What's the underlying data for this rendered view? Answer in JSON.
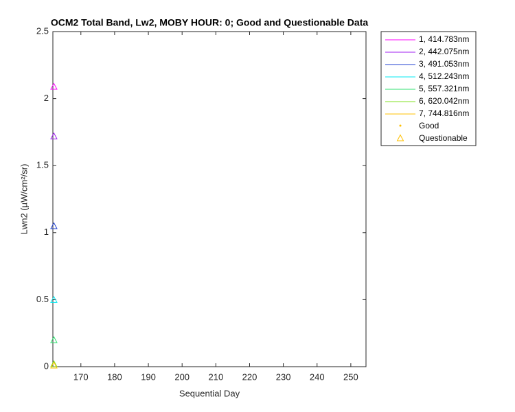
{
  "chart_data": {
    "type": "scatter",
    "title": "OCM2 Total Band, Lw2, MOBY HOUR: 0;  Good and Questionable Data",
    "x_label": "Sequential Day",
    "y_label": "Lwn2 (µW/cm²/sr)",
    "xlim": [
      161.7,
      254.5
    ],
    "xticks": [
      170,
      180,
      190,
      200,
      210,
      220,
      230,
      240,
      250
    ],
    "ylim": [
      0,
      2.5
    ],
    "yticks": [
      0,
      0.5,
      1,
      1.5,
      2,
      2.5
    ],
    "grid": false,
    "legend": "outside-right",
    "series": [
      {
        "name": "1, 414.783nm",
        "color": "#ff00ff",
        "x": [
          162
        ],
        "values": [
          2.09
        ]
      },
      {
        "name": "2, 442.075nm",
        "color": "#a020f0",
        "x": [
          162
        ],
        "values": [
          1.72
        ]
      },
      {
        "name": "3, 491.053nm",
        "color": "#2040d0",
        "x": [
          162
        ],
        "values": [
          1.05
        ]
      },
      {
        "name": "4, 512.243nm",
        "color": "#00e8f0",
        "x": [
          162
        ],
        "values": [
          0.5
        ]
      },
      {
        "name": "5, 557.321nm",
        "color": "#30e070",
        "x": [
          162
        ],
        "values": [
          0.2
        ]
      },
      {
        "name": "6, 620.042nm",
        "color": "#80e020",
        "x": [
          162
        ],
        "values": [
          0.02
        ]
      },
      {
        "name": "7, 744.816nm",
        "color": "#ffc000",
        "x": [
          162
        ],
        "values": [
          0.01
        ]
      }
    ],
    "marker_legend": {
      "color": "#ffc000",
      "good": "Good",
      "questionable": "Questionable"
    }
  }
}
